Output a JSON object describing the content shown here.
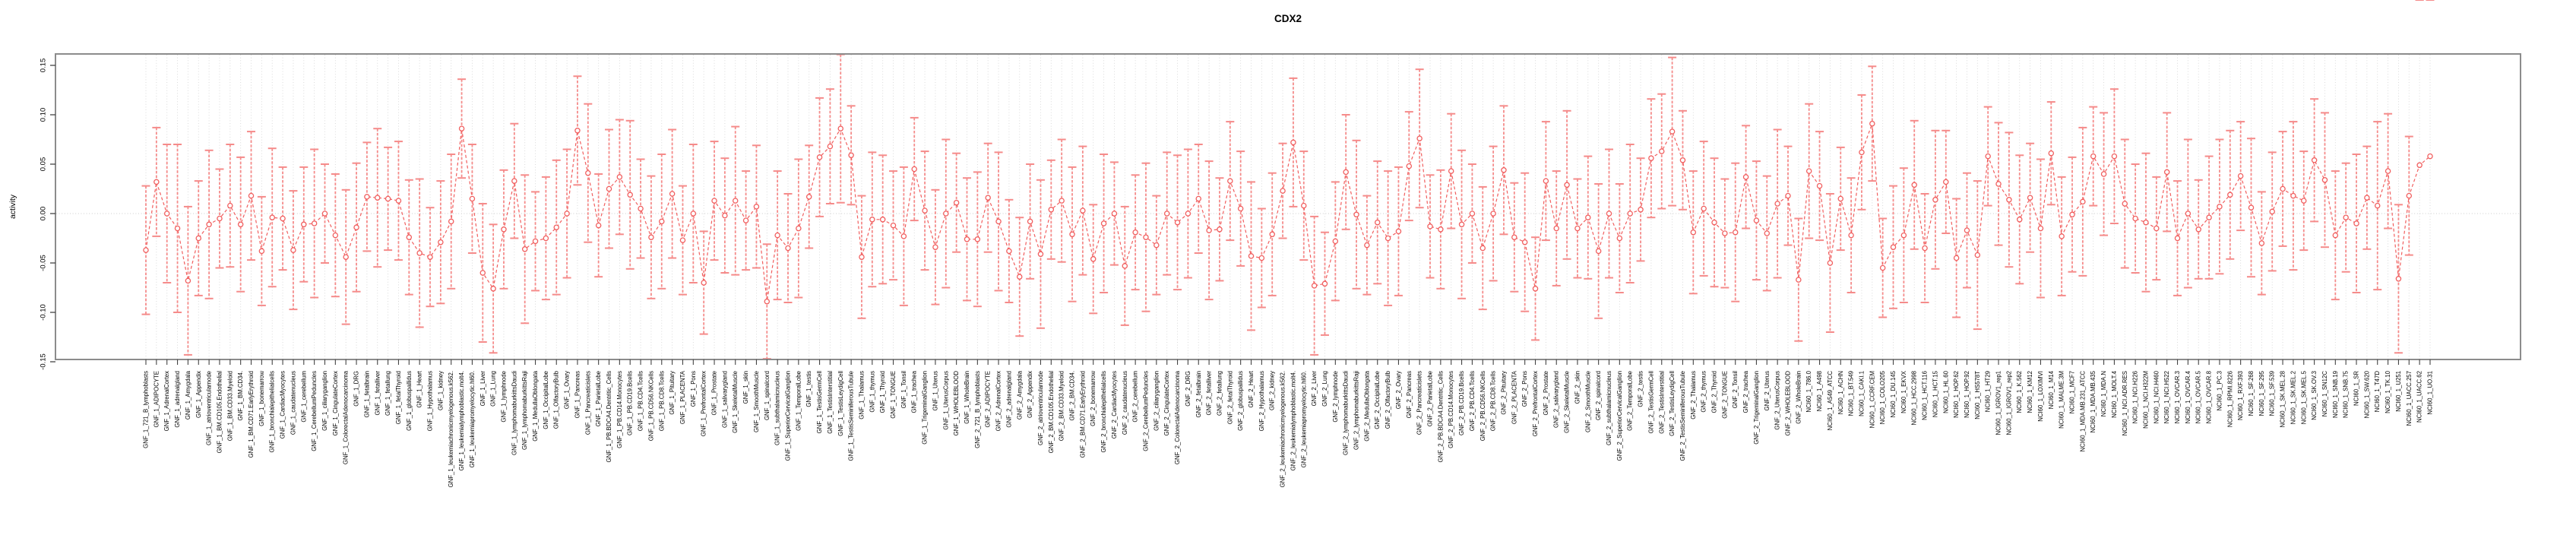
{
  "chart_data": {
    "type": "line",
    "title": "CDX2",
    "ylabel": "activity",
    "xlabel": "",
    "ylim": [
      -0.15,
      0.15
    ],
    "yticks": [
      0.15,
      0.1,
      0.05,
      0.0,
      -0.05,
      -0.1,
      -0.15
    ],
    "ytick_labels": [
      "0.15",
      "0.10",
      "0.05",
      "0.00",
      "-0.05",
      "-0.10",
      "-0.15"
    ],
    "legend": "none",
    "grid": "vertical-dotted-per-category-plus-dotted-zero-line",
    "marker": "open-circle",
    "line_style": "dashed",
    "series_color": "#F15F5F",
    "errorbar_color": "#F58B8A",
    "gridline_color": "#D6D6D6",
    "box_color": "#8C8C8C",
    "categories": [
      "GNF_1_721_B_lymphoblasts",
      "GNF_1_ADIPOCYTE",
      "GNF_1_AdrenalCortex",
      "GNF_1_adrenalgland",
      "GNF_1_Amygdala",
      "GNF_1_Appendix",
      "GNF_1_atrioventricularnode",
      "GNF_1_BM.CD105.Endothelial",
      "GNF_1_BM.CD33.Myeloid",
      "GNF_1_BM.CD34.",
      "GNF_1_BM.CD71.EarlyErythroid",
      "GNF_1_bonemarrow",
      "GNF_1_bronchialepithelialcells",
      "GNF_1_CardiacMyocytes",
      "GNF_1_caudatenucleus",
      "GNF_1_cerebellum",
      "GNF_1_CerebellumPeduncles",
      "GNF_1_ciliaryganglion",
      "GNF_1_CingulateCortex",
      "GNF_1_ColorectalAdenocarcinoma",
      "GNF_1_DRG",
      "GNF_1_fetalbrain",
      "GNF_1_fetalliver",
      "GNF_1_fetallung",
      "GNF_1_fetalThyroid",
      "GNF_1_globuspallidus",
      "GNF_1_Heart",
      "GNF_1_Hypothalamus",
      "GNF_1_kidney",
      "GNF_1_leukemiachronicmyelogenous.k562.",
      "GNF_1_leukemialymphoblastic.molt4.",
      "GNF_1_leukemiapromyelocytic.hl60.",
      "GNF_1_Liver",
      "GNF_1_Lung",
      "GNF_1_lymphnode",
      "GNF_1_lymphomaburkittsDaudi",
      "GNF_1_lymphomaburkittsRaji",
      "GNF_1_MedullaOblongata",
      "GNF_1_OccipitalLobe",
      "GNF_1_OlfactoryBulb",
      "GNF_1_Ovary",
      "GNF_1_Pancreas",
      "GNF_1_Pancreaticislets",
      "GNF_1_ParietalLobe",
      "GNF_1_PB.BDCA4.Dentritic_Cells",
      "GNF_1_PB.CD14.Monocytes",
      "GNF_1_PB.CD19.Bcells",
      "GNF_1_PB.CD4.Tcells",
      "GNF_1_PB.CD56.NKCells",
      "GNF_1_PB.CD8.Tcells",
      "GNF_1_Pituitary",
      "GNF_1_PLACENTA",
      "GNF_1_Pons",
      "GNF_1_PrefrontalCortex",
      "GNF_1_Prostate",
      "GNF_1_salivarygland",
      "GNF_1_SkeletalMuscle",
      "GNF_1_skin",
      "GNF_1_SmoothMuscle",
      "GNF_1_spinalcord",
      "GNF_1_subthalamicnucleus",
      "GNF_1_SuperiorCervicalGanglion",
      "GNF_1_TemporalLobe",
      "GNF_1_testis",
      "GNF_1_TestisGermCell",
      "GNF_1_TestisInterstitial",
      "GNF_1_TestisLeydigCell",
      "GNF_1_TestisSeminiferousTubule",
      "GNF_1_Thalamus",
      "GNF_1_thymus",
      "GNF_1_Thyroid",
      "GNF_1_TONGUE",
      "GNF_1_Tonsil",
      "GNF_1_trachea",
      "GNF_1_TrigeminalGanglion",
      "GNF_1_Uterus",
      "GNF_1_UterusCorpus",
      "GNF_1_WHOLEBLOOD",
      "GNF_1_WholeBrain",
      "GNF_2_721_B_lymphoblasts",
      "GNF_2_ADIPOCYTE",
      "GNF_2_AdrenalCortex",
      "GNF_2_adrenalgland",
      "GNF_2_Amygdala",
      "GNF_2_Appendix",
      "GNF_2_atrioventricularnode",
      "GNF_2_BM.CD105.Endothelial",
      "GNF_2_BM.CD33.Myeloid",
      "GNF_2_BM.CD34.",
      "GNF_2_BM.CD71.EarlyErythroid",
      "GNF_2_bonemarrow",
      "GNF_2_bronchialepithelialcells",
      "GNF_2_CardiacMyocytes",
      "GNF_2_caudatenucleus",
      "GNF_2_cerebellum",
      "GNF_2_CerebellumPeduncles",
      "GNF_2_ciliaryganglion",
      "GNF_2_CingulateCortex",
      "GNF_2_ColorectalAdenocarcinoma",
      "GNF_2_DRG",
      "GNF_2_fetalbrain",
      "GNF_2_fetalliver",
      "GNF_2_fetallung",
      "GNF_2_fetalThyroid",
      "GNF_2_globuspallidus",
      "GNF_2_Heart",
      "GNF_2_Hypothalamus",
      "GNF_2_kidney",
      "GNF_2_leukemiachronicmyelogenous.k562.",
      "GNF_2_leukemialymphoblastic.molt4.",
      "GNF_2_leukemiapromyelocytic.hl60.",
      "GNF_2_Liver",
      "GNF_2_Lung",
      "GNF_2_lymphnode",
      "GNF_2_lymphomaburkittsDaudi",
      "GNF_2_lymphomaburkittsRaji",
      "GNF_2_MedullaOblongata",
      "GNF_2_OccipitalLobe",
      "GNF_2_OlfactoryBulb",
      "GNF_2_Ovary",
      "GNF_2_Pancreas",
      "GNF_2_Pancreaticislets",
      "GNF_2_ParietalLobe",
      "GNF_2_PB.BDCA4.Dentritic_Cells",
      "GNF_2_PB.CD14.Monocytes",
      "GNF_2_PB.CD19.Bcells",
      "GNF_2_PB.CD4.Tcells",
      "GNF_2_PB.CD56.NKCells",
      "GNF_2_PB.CD8.Tcells",
      "GNF_2_Pituitary",
      "GNF_2_PLACENTA",
      "GNF_2_Pons",
      "GNF_2_PrefrontalCortex",
      "GNF_2_Prostate",
      "GNF_2_salivarygland",
      "GNF_2_SkeletalMuscle",
      "GNF_2_skin",
      "GNF_2_SmoothMuscle",
      "GNF_2_spinalcord",
      "GNF_2_subthalamicnucleus",
      "GNF_2_SuperiorCervicalGanglion",
      "GNF_2_TemporalLobe",
      "GNF_2_testis",
      "GNF_2_TestisGermCell",
      "GNF_2_TestisInterstitial",
      "GNF_2_TestisLeydigCell",
      "GNF_2_TestisSeminiferousTubule",
      "GNF_2_Thalamus",
      "GNF_2_thymus",
      "GNF_2_Thyroid",
      "GNF_2_TONGUE",
      "GNF_2_Tonsil",
      "GNF_2_trachea",
      "GNF_2_TrigeminalGanglion",
      "GNF_2_Uterus",
      "GNF_2_UterusCorpus",
      "GNF_2_WHOLEBLOOD",
      "GNF_2_WholeBrain",
      "NCI60_1_786.0",
      "NCI60_1_A498",
      "NCI60_1_A549_ATCC",
      "NCI60_1_ACHN",
      "NCI60_1_BT.549",
      "NCI60_1_CAKI.1",
      "NCI60_1_CCRF.CEM",
      "NCI60_1_COLO205",
      "NCI60_1_DU.145",
      "NCI60_1_EKVX",
      "NCI60_1_HCC.2998",
      "NCI60_1_HCT.116",
      "NCI60_1_HCT.15",
      "NCI60_1_HL.60",
      "NCI60_1_HOP.62",
      "NCI60_1_HOP.92",
      "NCI60_1_HS578T",
      "NCI60_1_HT29",
      "NCI60_1_IGROV1_rep1",
      "NCI60_1_IGROV1_rep2",
      "NCI60_1_K.562",
      "NCI60_1_KM12",
      "NCI60_1_LOXIMVI",
      "NCI60_1_M14",
      "NCI60_1_MALME.3M",
      "NCI60_1_MCF7",
      "NCI60_1_MDA.MB.231_ATCC",
      "NCI60_1_MDA.MB.435",
      "NCI60_1_MDA.N",
      "NCI60_1_MOLT.4",
      "NCI60_1_NCI.ADR.RES",
      "NCI60_1_NCI.H226",
      "NCI60_1_NCI.H322M",
      "NCI60_1_NCI.H460",
      "NCI60_1_NCI.H522",
      "NCI60_1_OVCAR.3",
      "NCI60_1_OVCAR.4",
      "NCI60_1_OVCAR.5",
      "NCI60_1_OVCAR.8",
      "NCI60_1_PC.3",
      "NCI60_1_RPMI.8226",
      "NCI60_1_RXF.393",
      "NCI60_1_SF.268",
      "NCI60_1_SF.295",
      "NCI60_1_SF.539",
      "NCI60_1_SK.MEL.28",
      "NCI60_1_SK.MEL.2",
      "NCI60_1_SK.MEL.5",
      "NCI60_1_SK.OV.3",
      "NCI60_1_SN12C",
      "NCI60_1_SNB.19",
      "NCI60_1_SNB.75",
      "NCI60_1_SR",
      "NCI60_1_SW.620",
      "NCI60_1_T47D",
      "NCI60_1_TK.10",
      "NCI60_1_U251",
      "NCI60_1_UACC.257",
      "NCI60_1_UACC.62",
      "NCI60_1_UO.31"
    ],
    "values": [
      -0.037,
      0.032,
      0.0,
      -0.015,
      -0.068,
      -0.025,
      -0.011,
      -0.005,
      0.008,
      -0.011,
      0.018,
      -0.038,
      -0.004,
      -0.005,
      -0.037,
      -0.011,
      -0.01,
      0.0,
      -0.022,
      -0.044,
      -0.014,
      0.017,
      0.016,
      0.015,
      0.013,
      -0.024,
      -0.04,
      -0.044,
      -0.029,
      -0.008,
      0.086,
      0.015,
      -0.06,
      -0.076,
      -0.016,
      0.033,
      -0.036,
      -0.028,
      -0.025,
      -0.014,
      0.0,
      0.084,
      0.041,
      -0.012,
      0.025,
      0.037,
      0.019,
      0.005,
      -0.024,
      -0.008,
      0.02,
      -0.027,
      0.0,
      -0.07,
      0.013,
      -0.002,
      0.013,
      -0.007,
      0.007,
      -0.089,
      -0.022,
      -0.035,
      -0.015,
      0.017,
      0.057,
      0.068,
      0.086,
      0.059,
      -0.044,
      -0.006,
      -0.006,
      -0.012,
      -0.023,
      0.045,
      0.003,
      -0.034,
      0.0,
      0.011,
      -0.026,
      -0.026,
      0.016,
      -0.008,
      -0.038,
      -0.064,
      -0.008,
      -0.041,
      0.004,
      0.013,
      -0.021,
      0.003,
      -0.046,
      -0.01,
      0.0,
      -0.053,
      -0.019,
      -0.024,
      -0.032,
      0.0,
      -0.009,
      0.0,
      0.015,
      -0.017,
      -0.016,
      0.033,
      0.005,
      -0.043,
      -0.045,
      -0.021,
      0.023,
      0.072,
      0.008,
      -0.073,
      -0.071,
      -0.028,
      0.042,
      -0.001,
      -0.032,
      -0.009,
      -0.025,
      -0.018,
      0.048,
      0.076,
      -0.013,
      -0.016,
      0.043,
      -0.011,
      0.0,
      -0.035,
      0.0,
      0.044,
      -0.024,
      -0.029,
      -0.076,
      0.033,
      -0.015,
      0.029,
      -0.015,
      -0.004,
      -0.038,
      0.0,
      -0.025,
      0.0,
      0.004,
      0.056,
      0.063,
      0.083,
      0.054,
      -0.019,
      0.005,
      -0.009,
      -0.02,
      -0.019,
      0.037,
      -0.007,
      -0.02,
      0.01,
      0.018,
      -0.067,
      0.043,
      0.028,
      -0.05,
      0.015,
      -0.022,
      0.062,
      0.091,
      -0.055,
      -0.034,
      -0.022,
      0.029,
      -0.035,
      0.014,
      0.032,
      -0.045,
      -0.017,
      -0.042,
      0.058,
      0.03,
      0.014,
      -0.006,
      0.016,
      -0.015,
      0.061,
      -0.023,
      -0.001,
      0.012,
      0.058,
      0.04,
      0.058,
      0.01,
      -0.005,
      -0.009,
      -0.015,
      0.042,
      -0.025,
      0.0,
      -0.016,
      -0.004,
      0.007,
      0.019,
      0.038,
      0.006,
      -0.03,
      0.002,
      0.025,
      0.018,
      0.013,
      0.054,
      0.034,
      -0.022,
      -0.004,
      -0.01,
      0.016,
      0.008,
      0.043,
      -0.066,
      0.018,
      0.049,
      0.058
    ],
    "errors": [
      0.065,
      0.055,
      0.07,
      0.085,
      0.075,
      0.058,
      0.075,
      0.05,
      0.062,
      0.068,
      0.065,
      0.055,
      0.07,
      0.052,
      0.06,
      0.058,
      0.075,
      0.05,
      0.062,
      0.068,
      0.065,
      0.055,
      0.07,
      0.052,
      0.06,
      0.058,
      0.075,
      0.05,
      0.062,
      0.068,
      0.05,
      0.055,
      0.07,
      0.065,
      0.06,
      0.058,
      0.075,
      0.05,
      0.062,
      0.068,
      0.065,
      0.055,
      0.07,
      0.052,
      0.06,
      0.058,
      0.075,
      0.05,
      0.062,
      0.068,
      0.065,
      0.055,
      0.07,
      0.052,
      0.06,
      0.058,
      0.075,
      0.05,
      0.062,
      0.058,
      0.065,
      0.055,
      0.07,
      0.052,
      0.06,
      0.058,
      0.075,
      0.05,
      0.062,
      0.068,
      0.065,
      0.055,
      0.07,
      0.052,
      0.06,
      0.058,
      0.075,
      0.05,
      0.062,
      0.068,
      0.055,
      0.07,
      0.052,
      0.06,
      0.058,
      0.075,
      0.05,
      0.062,
      0.068,
      0.065,
      0.055,
      0.07,
      0.052,
      0.06,
      0.058,
      0.075,
      0.05,
      0.062,
      0.068,
      0.065,
      0.055,
      0.07,
      0.052,
      0.06,
      0.058,
      0.075,
      0.05,
      0.062,
      0.048,
      0.065,
      0.055,
      0.07,
      0.052,
      0.06,
      0.058,
      0.075,
      0.05,
      0.062,
      0.068,
      0.065,
      0.055,
      0.07,
      0.052,
      0.06,
      0.058,
      0.075,
      0.05,
      0.062,
      0.068,
      0.065,
      0.055,
      0.07,
      0.052,
      0.06,
      0.058,
      0.075,
      0.05,
      0.062,
      0.068,
      0.065,
      0.055,
      0.07,
      0.052,
      0.06,
      0.058,
      0.075,
      0.05,
      0.062,
      0.068,
      0.065,
      0.055,
      0.07,
      0.052,
      0.06,
      0.058,
      0.075,
      0.05,
      0.062,
      0.068,
      0.055,
      0.07,
      0.052,
      0.058,
      0.058,
      0.058,
      0.05,
      0.062,
      0.068,
      0.065,
      0.055,
      0.07,
      0.052,
      0.06,
      0.058,
      0.075,
      0.05,
      0.062,
      0.068,
      0.065,
      0.055,
      0.07,
      0.052,
      0.06,
      0.058,
      0.075,
      0.05,
      0.062,
      0.068,
      0.065,
      0.055,
      0.07,
      0.052,
      0.06,
      0.058,
      0.075,
      0.05,
      0.062,
      0.068,
      0.065,
      0.055,
      0.07,
      0.052,
      0.06,
      0.058,
      0.075,
      0.05,
      0.062,
      0.068,
      0.065,
      0.055,
      0.07,
      0.052,
      0.085,
      0.058,
      0.075,
      0.06
    ]
  }
}
